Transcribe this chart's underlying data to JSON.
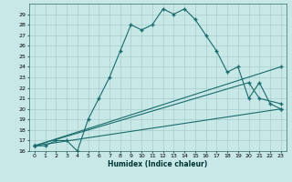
{
  "xlabel": "Humidex (Indice chaleur)",
  "bg_color": "#c8e8e8",
  "grid_color": "#a8cccc",
  "line_color": "#1a6b6b",
  "series_main": {
    "x": [
      0,
      1,
      2,
      3,
      4,
      5,
      6,
      7,
      8,
      9,
      10,
      11,
      12,
      13,
      14,
      15,
      16,
      17,
      18,
      19,
      20,
      21,
      22,
      23
    ],
    "y": [
      16.5,
      16.5,
      17.0,
      17.0,
      16.0,
      19.0,
      21.0,
      23.0,
      25.5,
      28.0,
      27.5,
      28.0,
      29.5,
      29.0,
      29.5,
      28.5,
      27.0,
      25.5,
      23.5,
      24.0,
      21.0,
      22.5,
      20.5,
      20.0
    ]
  },
  "line1": {
    "x": [
      0,
      23
    ],
    "y": [
      16.5,
      24.0
    ]
  },
  "line2": {
    "x": [
      0,
      20,
      21,
      23
    ],
    "y": [
      16.5,
      22.5,
      21.0,
      20.5
    ]
  },
  "line3": {
    "x": [
      0,
      23
    ],
    "y": [
      16.5,
      20.0
    ]
  },
  "xlim": [
    -0.5,
    23.5
  ],
  "ylim": [
    16,
    30
  ],
  "yticks": [
    16,
    17,
    18,
    19,
    20,
    21,
    22,
    23,
    24,
    25,
    26,
    27,
    28,
    29
  ],
  "xticks": [
    0,
    1,
    2,
    3,
    4,
    5,
    6,
    7,
    8,
    9,
    10,
    11,
    12,
    13,
    14,
    15,
    16,
    17,
    18,
    19,
    20,
    21,
    22,
    23
  ]
}
